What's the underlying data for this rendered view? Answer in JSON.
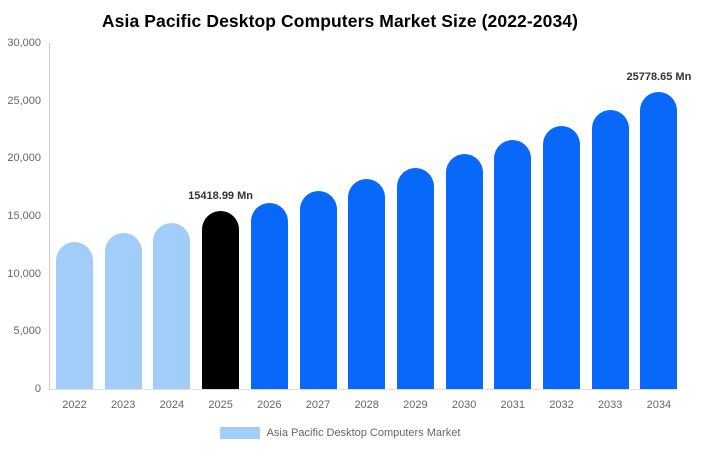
{
  "title": "Asia Pacific Desktop Computers Market Size (2022-2034)",
  "legend": {
    "label": "Asia Pacific Desktop Computers Market",
    "swatch_color": "#a2cdf8"
  },
  "colors": {
    "historical": "#a2cdf8",
    "base_year": "#000000",
    "forecast": "#0768f9",
    "axis_text": "#666666",
    "annotation_text": "#333333"
  },
  "y_axis": {
    "ticks": [
      "30,000",
      "25,000",
      "20,000",
      "15,000",
      "10,000",
      "5,000",
      "0"
    ]
  },
  "chart_data": {
    "type": "bar",
    "title": "Asia Pacific Desktop Computers Market Size (2022-2034)",
    "series_name": "Asia Pacific Desktop Computers Market",
    "unit": "Mn",
    "categories": [
      2022,
      2023,
      2024,
      2025,
      2026,
      2027,
      2028,
      2029,
      2030,
      2031,
      2032,
      2033,
      2034
    ],
    "values": [
      12750,
      13500,
      14350,
      15418.99,
      16100,
      17200,
      18200,
      19150,
      20400,
      21600,
      22800,
      24200,
      25778.65
    ],
    "roles": [
      "historical",
      "historical",
      "historical",
      "base_year",
      "forecast",
      "forecast",
      "forecast",
      "forecast",
      "forecast",
      "forecast",
      "forecast",
      "forecast",
      "forecast"
    ],
    "ylim": [
      0,
      30000
    ],
    "grid": false,
    "legend_position": "bottom",
    "annotations": [
      {
        "year": 2025,
        "text": "15418.99 Mn"
      },
      {
        "year": 2034,
        "text": "25778.65 Mn"
      }
    ]
  }
}
